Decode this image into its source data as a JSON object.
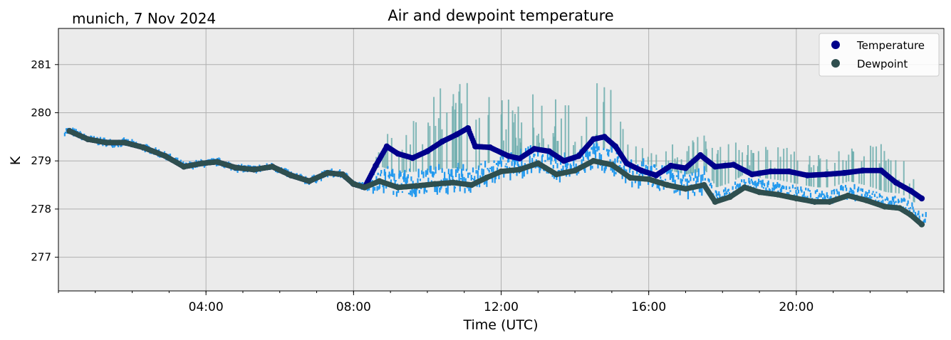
{
  "location_date": "munich, 7 Nov 2024",
  "chart_data": {
    "type": "scatter",
    "title": "Air and dewpoint temperature",
    "xlabel": "Time (UTC)",
    "ylabel": "K",
    "x_unit": "hours UTC",
    "xlim": [
      0,
      24
    ],
    "ylim": [
      276.3,
      281.75
    ],
    "y_ticks": [
      277,
      278,
      279,
      280,
      281
    ],
    "x_ticks": [
      {
        "value": 4,
        "label": "04:00"
      },
      {
        "value": 8,
        "label": "08:00"
      },
      {
        "value": 12,
        "label": "12:00"
      },
      {
        "value": 16,
        "label": "16:00"
      },
      {
        "value": 20,
        "label": "20:00"
      }
    ],
    "grid": true,
    "legend_position": "top-right",
    "series": [
      {
        "name": "Temperature",
        "color": "#00008b",
        "points": [
          [
            0.3,
            279.62
          ],
          [
            0.8,
            279.45
          ],
          [
            1.3,
            279.38
          ],
          [
            1.8,
            279.38
          ],
          [
            2.3,
            279.28
          ],
          [
            2.9,
            279.1
          ],
          [
            3.4,
            278.88
          ],
          [
            3.9,
            278.95
          ],
          [
            4.3,
            278.98
          ],
          [
            4.8,
            278.86
          ],
          [
            5.3,
            278.82
          ],
          [
            5.8,
            278.88
          ],
          [
            6.3,
            278.7
          ],
          [
            6.8,
            278.58
          ],
          [
            7.3,
            278.75
          ],
          [
            7.7,
            278.72
          ],
          [
            8.0,
            278.52
          ],
          [
            8.3,
            278.45
          ],
          [
            8.6,
            278.9
          ],
          [
            8.9,
            279.3
          ],
          [
            9.2,
            279.15
          ],
          [
            9.6,
            279.06
          ],
          [
            10.0,
            279.2
          ],
          [
            10.4,
            279.4
          ],
          [
            10.8,
            279.55
          ],
          [
            11.1,
            279.68
          ],
          [
            11.3,
            279.3
          ],
          [
            11.7,
            279.28
          ],
          [
            12.2,
            279.1
          ],
          [
            12.5,
            279.05
          ],
          [
            12.9,
            279.25
          ],
          [
            13.3,
            279.2
          ],
          [
            13.7,
            279.0
          ],
          [
            14.1,
            279.1
          ],
          [
            14.5,
            279.45
          ],
          [
            14.8,
            279.5
          ],
          [
            15.1,
            279.3
          ],
          [
            15.4,
            278.95
          ],
          [
            15.8,
            278.8
          ],
          [
            16.2,
            278.7
          ],
          [
            16.6,
            278.9
          ],
          [
            17.0,
            278.85
          ],
          [
            17.4,
            279.12
          ],
          [
            17.8,
            278.88
          ],
          [
            18.3,
            278.92
          ],
          [
            18.8,
            278.72
          ],
          [
            19.3,
            278.78
          ],
          [
            19.8,
            278.78
          ],
          [
            20.3,
            278.7
          ],
          [
            20.8,
            278.72
          ],
          [
            21.3,
            278.75
          ],
          [
            21.8,
            278.8
          ],
          [
            22.3,
            278.8
          ],
          [
            22.7,
            278.55
          ],
          [
            23.1,
            278.38
          ],
          [
            23.4,
            278.22
          ]
        ]
      },
      {
        "name": "Dewpoint",
        "color": "#2f4f4f",
        "points": [
          [
            0.3,
            279.62
          ],
          [
            0.8,
            279.45
          ],
          [
            1.3,
            279.38
          ],
          [
            1.8,
            279.38
          ],
          [
            2.3,
            279.28
          ],
          [
            2.9,
            279.1
          ],
          [
            3.4,
            278.88
          ],
          [
            3.9,
            278.95
          ],
          [
            4.3,
            278.98
          ],
          [
            4.8,
            278.86
          ],
          [
            5.3,
            278.82
          ],
          [
            5.8,
            278.88
          ],
          [
            6.3,
            278.7
          ],
          [
            6.8,
            278.58
          ],
          [
            7.3,
            278.75
          ],
          [
            7.7,
            278.72
          ],
          [
            8.0,
            278.52
          ],
          [
            8.3,
            278.45
          ],
          [
            8.7,
            278.58
          ],
          [
            9.2,
            278.45
          ],
          [
            9.7,
            278.48
          ],
          [
            10.2,
            278.52
          ],
          [
            10.7,
            278.55
          ],
          [
            11.2,
            278.5
          ],
          [
            11.6,
            278.65
          ],
          [
            12.0,
            278.78
          ],
          [
            12.5,
            278.82
          ],
          [
            13.0,
            278.95
          ],
          [
            13.5,
            278.72
          ],
          [
            14.0,
            278.8
          ],
          [
            14.5,
            279.0
          ],
          [
            15.0,
            278.92
          ],
          [
            15.5,
            278.65
          ],
          [
            16.0,
            278.62
          ],
          [
            16.5,
            278.5
          ],
          [
            17.0,
            278.42
          ],
          [
            17.5,
            278.5
          ],
          [
            17.8,
            278.15
          ],
          [
            18.2,
            278.25
          ],
          [
            18.6,
            278.45
          ],
          [
            19.0,
            278.35
          ],
          [
            19.5,
            278.3
          ],
          [
            20.0,
            278.22
          ],
          [
            20.5,
            278.15
          ],
          [
            20.9,
            278.15
          ],
          [
            21.4,
            278.28
          ],
          [
            21.9,
            278.18
          ],
          [
            22.4,
            278.05
          ],
          [
            22.8,
            278.02
          ],
          [
            23.1,
            277.88
          ],
          [
            23.4,
            277.68
          ]
        ]
      }
    ]
  }
}
